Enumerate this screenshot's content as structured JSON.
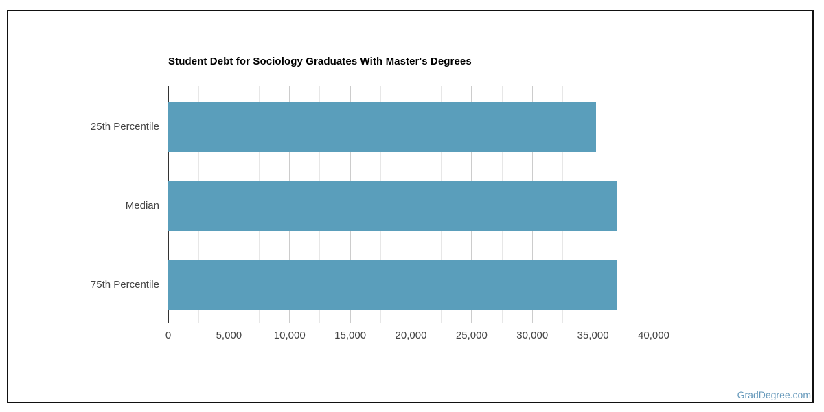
{
  "page": {
    "watermark": "GradDegree.com"
  },
  "chart_data": {
    "type": "bar",
    "orientation": "horizontal",
    "title": "Student Debt for Sociology Graduates With Master's Degrees",
    "categories": [
      "25th Percentile",
      "Median",
      "75th Percentile"
    ],
    "values": [
      35250,
      37000,
      37000
    ],
    "xlabel": "",
    "ylabel": "",
    "xlim": [
      0,
      40000
    ],
    "x_major_tick_interval": 5000,
    "x_minor_tick_interval": 2500,
    "x_tick_labels": [
      "0",
      "5,000",
      "10,000",
      "15,000",
      "20,000",
      "25,000",
      "30,000",
      "35,000",
      "40,000"
    ],
    "grid": true,
    "legend_position": "none",
    "colors": {
      "bar": "#5A9EBB",
      "major_grid": "#cccccc",
      "minor_grid": "#e7e7e7",
      "axis_line": "#333333",
      "label_text": "#444444",
      "title_text": "#000000",
      "watermark": "#6699bb",
      "card_border": "#111111"
    }
  }
}
